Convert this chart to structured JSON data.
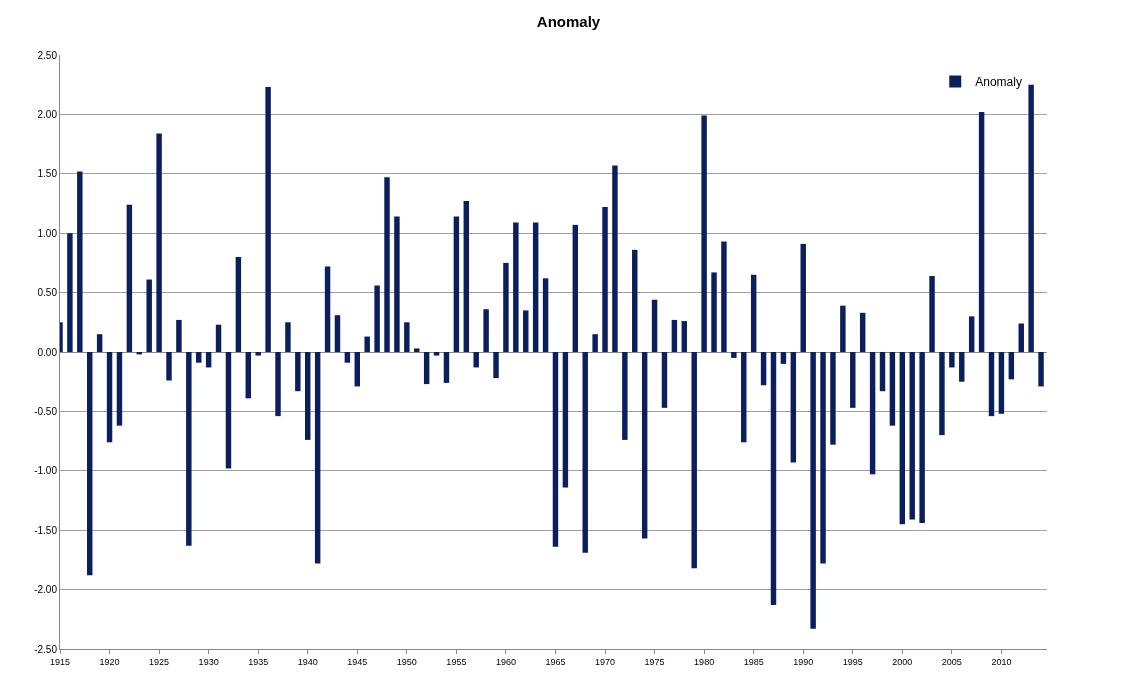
{
  "chart_data": {
    "type": "bar",
    "title": "Anomaly",
    "x": [
      1915,
      1916,
      1917,
      1918,
      1919,
      1920,
      1921,
      1922,
      1923,
      1924,
      1925,
      1926,
      1927,
      1928,
      1929,
      1930,
      1931,
      1932,
      1933,
      1934,
      1935,
      1936,
      1937,
      1938,
      1939,
      1940,
      1941,
      1942,
      1943,
      1944,
      1945,
      1946,
      1947,
      1948,
      1949,
      1950,
      1951,
      1952,
      1953,
      1954,
      1955,
      1956,
      1957,
      1958,
      1959,
      1960,
      1961,
      1962,
      1963,
      1964,
      1965,
      1966,
      1967,
      1968,
      1969,
      1970,
      1971,
      1972,
      1973,
      1974,
      1975,
      1976,
      1977,
      1978,
      1979,
      1980,
      1981,
      1982,
      1983,
      1984,
      1985,
      1986,
      1987,
      1988,
      1989,
      1990,
      1991,
      1992,
      1993,
      1994,
      1995,
      1996,
      1997,
      1998,
      1999,
      2000,
      2001,
      2002,
      2003,
      2004,
      2005,
      2006,
      2007,
      2008,
      2009,
      2010,
      2011,
      2012,
      2013,
      2014
    ],
    "series": [
      {
        "name": "Anomaly",
        "color": "#0a1f5c",
        "values": [
          0.25,
          1.0,
          1.52,
          -1.88,
          0.15,
          -0.76,
          -0.62,
          1.24,
          -0.02,
          0.61,
          1.84,
          -0.24,
          0.27,
          -1.63,
          -0.09,
          -0.13,
          0.23,
          -0.98,
          0.8,
          -0.39,
          -0.03,
          2.23,
          -0.54,
          0.25,
          -0.33,
          -0.74,
          -1.78,
          0.72,
          0.31,
          -0.09,
          -0.29,
          0.13,
          0.56,
          1.47,
          1.14,
          0.25,
          0.03,
          -0.27,
          -0.03,
          -0.26,
          1.14,
          1.27,
          -0.13,
          0.36,
          -0.22,
          0.75,
          1.09,
          0.35,
          1.09,
          0.62,
          -1.64,
          -1.14,
          1.07,
          -1.69,
          0.15,
          1.22,
          1.57,
          -0.74,
          0.86,
          -1.57,
          0.44,
          -0.47,
          0.27,
          0.26,
          -1.82,
          1.99,
          0.67,
          0.93,
          -0.05,
          -0.76,
          0.65,
          -0.28,
          -2.13,
          -0.1,
          -0.93,
          0.91,
          -2.33,
          -1.78,
          -0.78,
          0.39,
          -0.47,
          0.33,
          -1.03,
          -0.33,
          -0.62,
          -1.45,
          -1.41,
          -1.44,
          0.64,
          -0.7,
          -0.13,
          -0.25,
          0.3,
          2.02,
          -0.54,
          -0.52,
          -0.23,
          0.24,
          2.25,
          -0.29
        ]
      }
    ],
    "xlim": [
      1915,
      2014.6
    ],
    "xticks": [
      1915,
      1920,
      1925,
      1930,
      1935,
      1940,
      1945,
      1950,
      1955,
      1960,
      1965,
      1970,
      1975,
      1980,
      1985,
      1990,
      1995,
      2000,
      2005,
      2010
    ],
    "ylim": [
      -2.5,
      2.5
    ],
    "yticks": [
      {
        "value": -2.5,
        "label": "-2.50"
      },
      {
        "value": -2.0,
        "label": "-2.00"
      },
      {
        "value": -1.5,
        "label": "-1.50"
      },
      {
        "value": -1.0,
        "label": "-1.00"
      },
      {
        "value": -0.5,
        "label": "-0.50"
      },
      {
        "value": 0,
        "label": "0.00"
      },
      {
        "value": 0.5,
        "label": "0.50"
      },
      {
        "value": 1.0,
        "label": "1.00"
      },
      {
        "value": 1.5,
        "label": "1.50"
      },
      {
        "value": 2.0,
        "label": "2.00"
      },
      {
        "value": 2.5,
        "label": "2.50"
      }
    ],
    "grid": "y",
    "legend": "top right"
  }
}
